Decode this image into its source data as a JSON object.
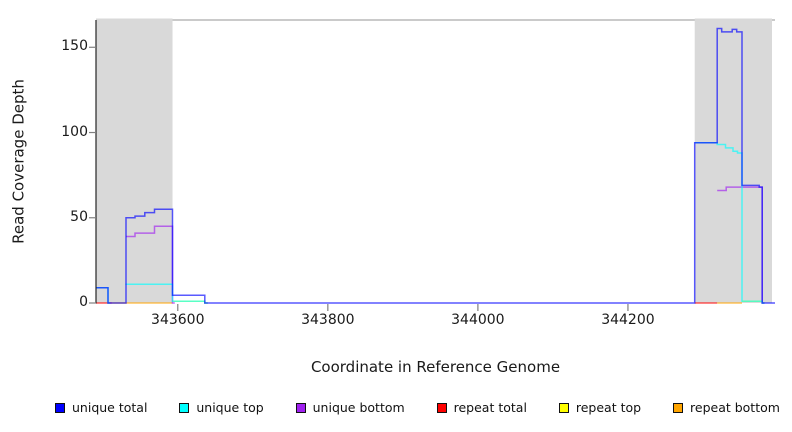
{
  "chart_data": {
    "type": "line",
    "subtype": "step-coverage-plot",
    "title": "",
    "xlabel": "Coordinate in Reference Genome",
    "ylabel": "Read Coverage Depth",
    "xlim": [
      343491,
      344396
    ],
    "ylim": [
      0,
      166
    ],
    "xticks": [
      343600,
      343800,
      344000,
      344200
    ],
    "yticks": [
      0,
      50,
      100,
      150
    ],
    "grid": false,
    "legend": {
      "position": "bottom",
      "entries": [
        {
          "label": "unique total",
          "color": "#0000FF"
        },
        {
          "label": "unique top",
          "color": "#00FFFF"
        },
        {
          "label": "unique bottom",
          "color": "#A020F0"
        },
        {
          "label": "repeat total",
          "color": "#FF0000"
        },
        {
          "label": "repeat top",
          "color": "#FFFF00"
        },
        {
          "label": "repeat bottom",
          "color": "#FFA500"
        }
      ]
    },
    "background_regions": {
      "color": "#D9D9D9",
      "spans": [
        [
          343491,
          343593
        ],
        [
          344289,
          344392
        ]
      ]
    },
    "style": {
      "line_opacity": 0.65,
      "line_width": 1.5,
      "region_fill": "#D9D9D9",
      "left_spine_color": "#262626",
      "top_spine_color": "#AAAAAA",
      "tick_color": "#808080",
      "text_color": "#1a1a1a"
    },
    "draw_order": [
      "repeat_total",
      "repeat_top",
      "repeat_bottom",
      "unique_bottom",
      "unique_top",
      "unique_total"
    ],
    "series": [
      {
        "key": "unique_total",
        "name": "unique total",
        "color": "#0000FF",
        "segments": [
          [
            [
              343491,
              9
            ],
            [
              343507,
              0
            ],
            [
              343531,
              50
            ],
            [
              343543,
              51
            ],
            [
              343556,
              53
            ],
            [
              343569,
              55
            ],
            [
              343593,
              4.5
            ],
            [
              343636,
              0
            ],
            [
              344289,
              94
            ],
            [
              344319,
              161
            ],
            [
              344325,
              159
            ],
            [
              344339,
              160.5
            ],
            [
              344345,
              159
            ],
            [
              344352,
              69
            ],
            [
              344375,
              68
            ],
            [
              344379,
              0
            ],
            [
              344396,
              0
            ]
          ]
        ]
      },
      {
        "key": "unique_top",
        "name": "unique top",
        "color": "#00FFFF",
        "segments": [
          [
            [
              343491,
              9
            ],
            [
              343507,
              0
            ],
            [
              343510,
              0
            ]
          ],
          [
            [
              343530,
              11
            ],
            [
              343593,
              1
            ],
            [
              343636,
              0
            ],
            [
              343640,
              0
            ]
          ],
          [
            [
              344289,
              94
            ],
            [
              344319,
              93
            ],
            [
              344330,
              91
            ],
            [
              344340,
              89
            ],
            [
              344346,
              88
            ],
            [
              344352,
              1
            ],
            [
              344379,
              0
            ],
            [
              344382,
              0
            ]
          ]
        ]
      },
      {
        "key": "unique_bottom",
        "name": "unique bottom",
        "color": "#A020F0",
        "segments": [
          [
            [
              343531,
              39
            ],
            [
              343543,
              41
            ],
            [
              343569,
              45
            ],
            [
              343593,
              0
            ],
            [
              343596,
              0
            ]
          ],
          [
            [
              344319,
              66
            ],
            [
              344331,
              68
            ],
            [
              344379,
              0
            ],
            [
              344382,
              0
            ]
          ]
        ]
      },
      {
        "key": "repeat_total",
        "name": "repeat total",
        "color": "#FF0000",
        "segments": [
          [
            [
              343491,
              0
            ],
            [
              343512,
              0
            ]
          ],
          [
            [
              344289,
              0
            ],
            [
              344319,
              0
            ]
          ]
        ]
      },
      {
        "key": "repeat_top",
        "name": "repeat top",
        "color": "#FFFF00",
        "segments": [
          [
            [
              343593,
              1
            ],
            [
              343636,
              0
            ],
            [
              343640,
              0
            ]
          ],
          [
            [
              344352,
              1
            ],
            [
              344379,
              0
            ],
            [
              344382,
              0
            ]
          ]
        ]
      },
      {
        "key": "repeat_bottom",
        "name": "repeat bottom",
        "color": "#FFA500",
        "segments": [
          [
            [
              343512,
              0
            ],
            [
              343593,
              0
            ]
          ],
          [
            [
              344319,
              0
            ],
            [
              344352,
              0
            ]
          ]
        ]
      }
    ]
  }
}
